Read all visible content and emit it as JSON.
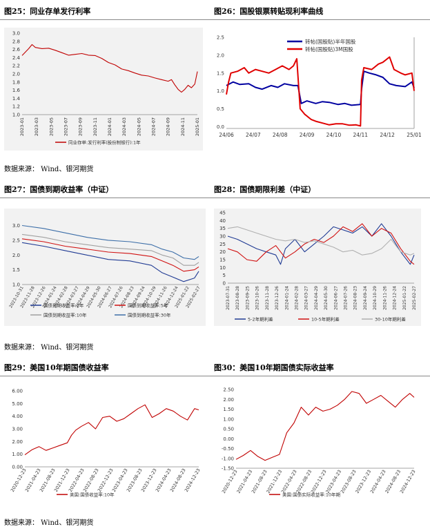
{
  "source_text": "数据来源： Wind、银河期货",
  "charts": [
    {
      "fig_title": "图25：同业存单发行利率",
      "chart_data": {
        "type": "line",
        "x_ticks": [
          "2023-01",
          "2023-03",
          "2023-05",
          "2023-07",
          "2023-09",
          "2023-11",
          "2024-01",
          "2024-03",
          "2024-05",
          "2024-07",
          "2024-09",
          "2024-11",
          "2025-01"
        ],
        "y_ticks": [
          "1.0",
          "1.2",
          "1.4",
          "1.6",
          "1.8",
          "2.0",
          "2.2",
          "2.4",
          "2.6",
          "2.8",
          "3.0"
        ],
        "ylim": [
          1.0,
          3.0
        ],
        "grid": false,
        "legend_position": "bottom",
        "series": [
          {
            "name": "同业存单:发行利率(股份制银行):1年",
            "color": "#c00000",
            "x": [
              0,
              1,
              1.5,
              2,
              3,
              4,
              5,
              6,
              7,
              8,
              9,
              10,
              11,
              12,
              13,
              14,
              15,
              16,
              17,
              18,
              19,
              20,
              21,
              22,
              22.5,
              23,
              23.5,
              24,
              24.5,
              25,
              25.5,
              26,
              26.4
            ],
            "y": [
              2.45,
              2.62,
              2.72,
              2.65,
              2.62,
              2.63,
              2.58,
              2.52,
              2.46,
              2.48,
              2.5,
              2.46,
              2.45,
              2.38,
              2.28,
              2.22,
              2.12,
              2.08,
              2.02,
              1.97,
              1.95,
              1.9,
              1.86,
              1.82,
              1.86,
              1.73,
              1.62,
              1.55,
              1.62,
              1.72,
              1.66,
              1.75,
              2.06
            ]
          }
        ]
      }
    },
    {
      "fig_title": "图26：国股银票转贴现利率曲线",
      "chart_data": {
        "type": "line",
        "x_ticks": [
          "24/06",
          "24/07",
          "24/08",
          "24/09",
          "24/10",
          "24/11",
          "24/12",
          "25/01"
        ],
        "y_ticks": [
          "0.0",
          "0.5",
          "1.0",
          "1.5",
          "2.0",
          "2.5"
        ],
        "ylim": [
          -0.05,
          2.5
        ],
        "grid": false,
        "legend_position": "top-center",
        "series": [
          {
            "name": "转帖(国股贴)半年国股",
            "color": "#0000a0",
            "x": [
              0,
              0.3,
              0.6,
              1,
              1.3,
              1.6,
              2,
              2.3,
              2.6,
              3,
              3.2,
              3.35,
              3.6,
              4,
              4.3,
              4.6,
              5,
              5.3,
              5.6,
              6,
              6.05,
              6.15,
              6.4,
              6.7,
              7,
              7.3,
              7.6,
              8,
              8.3,
              8.4
            ],
            "y": [
              1.15,
              1.25,
              1.18,
              1.2,
              1.1,
              1.05,
              1.15,
              1.1,
              1.2,
              1.15,
              1.15,
              0.65,
              0.72,
              0.65,
              0.7,
              0.68,
              0.62,
              0.65,
              0.6,
              0.62,
              1.05,
              1.55,
              1.5,
              1.45,
              1.38,
              1.2,
              1.15,
              1.12,
              1.25,
              1.08
            ]
          },
          {
            "name": "转帖(国股贴)3M国股",
            "color": "#e00000",
            "x": [
              0,
              0.1,
              0.2,
              0.5,
              0.8,
              1,
              1.3,
              1.6,
              1.9,
              2.2,
              2.5,
              2.8,
              3,
              3.15,
              3.3,
              3.5,
              3.8,
              4,
              4.3,
              4.6,
              4.9,
              5.2,
              5.5,
              5.8,
              6,
              6.05,
              6.15,
              6.5,
              6.8,
              7,
              7.3,
              7.5,
              7.8,
              8,
              8.3,
              8.4
            ],
            "y": [
              0.9,
              1.25,
              1.5,
              1.55,
              1.65,
              1.5,
              1.6,
              1.55,
              1.5,
              1.6,
              1.7,
              1.6,
              1.7,
              1.9,
              0.5,
              0.35,
              0.2,
              0.15,
              0.1,
              0.05,
              0.08,
              0.08,
              0.04,
              0.05,
              0.02,
              1.3,
              1.65,
              1.6,
              1.75,
              1.8,
              1.95,
              1.6,
              1.5,
              1.45,
              1.5,
              1.0
            ]
          }
        ]
      }
    },
    {
      "fig_title": "图27：国债到期收益率（中证）",
      "chart_data": {
        "type": "line",
        "x_ticks": [
          "2023-10-31",
          "2023-11-28",
          "2023-12-26",
          "2024-01-24",
          "2024-02-28",
          "2024-03-27",
          "2024-04-29",
          "2024-05-30",
          "2024-06-27",
          "2024-07-26",
          "2024-08-23",
          "2024-09-24",
          "2024-10-29",
          "2024-11-26",
          "2024-12-24",
          "2025-01-22",
          "2025-02-27"
        ],
        "y_ticks": [
          "1.0",
          "1.5",
          "2.0",
          "2.5",
          "3.0"
        ],
        "ylim": [
          1.0,
          3.2
        ],
        "grid": false,
        "legend_position": "bottom",
        "series": [
          {
            "name": "国债到期收益率:2年",
            "color": "#1f3a93",
            "x": [
              0,
              2,
              4,
              6,
              8,
              10,
              12,
              13,
              14,
              15,
              16,
              16.4
            ],
            "y": [
              2.42,
              2.3,
              2.15,
              2.0,
              1.85,
              1.8,
              1.65,
              1.4,
              1.25,
              1.1,
              1.22,
              1.45
            ]
          },
          {
            "name": "国债到期收益率:5年",
            "color": "#d01010",
            "x": [
              0,
              2,
              4,
              6,
              8,
              10,
              12,
              13,
              14,
              15,
              16,
              16.4
            ],
            "y": [
              2.55,
              2.45,
              2.3,
              2.2,
              2.1,
              2.05,
              1.95,
              1.8,
              1.65,
              1.45,
              1.5,
              1.6
            ]
          },
          {
            "name": "国债到期收益率:10年",
            "color": "#a0a0a0",
            "x": [
              0,
              2,
              4,
              6,
              8,
              10,
              12,
              13,
              14,
              15,
              16,
              16.4
            ],
            "y": [
              2.7,
              2.6,
              2.45,
              2.35,
              2.25,
              2.2,
              2.15,
              2.0,
              1.9,
              1.65,
              1.65,
              1.75
            ]
          },
          {
            "name": "国债到期收益率:30年",
            "color": "#3c6ea8",
            "x": [
              0,
              2,
              4,
              6,
              8,
              10,
              12,
              13,
              14,
              15,
              16,
              16.4
            ],
            "y": [
              3.0,
              2.9,
              2.75,
              2.6,
              2.5,
              2.45,
              2.35,
              2.2,
              2.1,
              1.9,
              1.85,
              1.95
            ]
          }
        ]
      }
    },
    {
      "fig_title": "图28：国债期限利差（中证）",
      "chart_data": {
        "type": "line",
        "x_ticks": [
          "2023-07-31",
          "2023-08-28",
          "2023-09-25",
          "2023-10-26",
          "2023-11-28",
          "2023-12-26",
          "2024-01-24",
          "2024-02-28",
          "2024-03-27",
          "2024-04-29",
          "2024-05-30",
          "2024-06-27",
          "2024-07-26",
          "2024-08-23",
          "2024-09-24",
          "2024-10-29",
          "2024-11-26",
          "2024-12-24",
          "2025-01-22",
          "2025-02-27"
        ],
        "y_ticks": [
          "0",
          "5",
          "10",
          "15",
          "20",
          "25",
          "30",
          "35",
          "40",
          "45"
        ],
        "ylim": [
          0,
          45
        ],
        "grid": false,
        "legend_position": "bottom",
        "series": [
          {
            "name": "5-2年期利差",
            "color": "#1f3a93",
            "x": [
              0,
              1,
              2,
              3,
              4,
              5,
              5.5,
              6,
              7,
              8,
              9,
              10,
              11,
              12,
              13,
              14,
              15,
              16,
              17,
              18,
              19,
              19.4
            ],
            "y": [
              30,
              28,
              25,
              22,
              20,
              18,
              12,
              22,
              28,
              20,
              25,
              30,
              36,
              34,
              32,
              36,
              30,
              38,
              30,
              20,
              12,
              18
            ]
          },
          {
            "name": "10-5年期利差",
            "color": "#d01010",
            "x": [
              0,
              1,
              2,
              3,
              4,
              5,
              6,
              7,
              8,
              9,
              10,
              11,
              12,
              13,
              14,
              15,
              16,
              17,
              18,
              19,
              19.4
            ],
            "y": [
              22,
              20,
              15,
              14,
              20,
              24,
              16,
              20,
              25,
              28,
              26,
              30,
              36,
              33,
              38,
              30,
              35,
              32,
              22,
              14,
              12
            ]
          },
          {
            "name": "30-10年期利差",
            "color": "#b0b0b0",
            "x": [
              0,
              1,
              2,
              3,
              4,
              5,
              6,
              7,
              8,
              9,
              10,
              11,
              12,
              13,
              14,
              15,
              16,
              17,
              18,
              19,
              19.4
            ],
            "y": [
              35,
              36,
              34,
              32,
              30,
              28,
              27,
              28,
              26,
              27,
              25,
              23,
              20,
              21,
              18,
              19,
              22,
              28,
              20,
              18,
              19
            ]
          }
        ]
      }
    },
    {
      "fig_title": "图29：美国10年期国债收益率",
      "chart_data": {
        "type": "line",
        "x_ticks": [
          "2020-12-23",
          "2021-04-23",
          "2021-08-23",
          "2021-12-23",
          "2022-04-23",
          "2022-08-23",
          "2022-12-23",
          "2023-04-23",
          "2023-08-23",
          "2023-12-23",
          "2024-04-23",
          "2024-08-23",
          "2024-12-23"
        ],
        "y_ticks": [
          "0.00",
          "1.00",
          "2.00",
          "3.00",
          "4.00",
          "5.00",
          "6.00"
        ],
        "ylim": [
          0,
          6
        ],
        "grid": false,
        "legend_position": "bottom",
        "series": [
          {
            "name": "美国:国债收益率:10年",
            "color": "#c00000",
            "x": [
              0,
              0.5,
              1,
              1.5,
              2,
              2.5,
              3,
              3.3,
              3.6,
              4,
              4.5,
              5,
              5.5,
              6,
              6.5,
              7,
              7.5,
              8,
              8.5,
              9,
              9.5,
              10,
              10.5,
              11,
              11.5,
              12,
              12.3
            ],
            "y": [
              0.95,
              1.35,
              1.6,
              1.3,
              1.5,
              1.7,
              1.9,
              2.5,
              2.9,
              3.2,
              3.5,
              3.0,
              3.9,
              4.0,
              3.6,
              3.8,
              4.2,
              4.6,
              4.9,
              3.9,
              4.2,
              4.6,
              4.4,
              4.0,
              3.7,
              4.6,
              4.5
            ]
          }
        ]
      }
    },
    {
      "fig_title": "图30：美国10年期国债实际收益率",
      "chart_data": {
        "type": "line",
        "x_ticks": [
          "2020-12-23",
          "2021-04-23",
          "2021-08-23",
          "2021-12-23",
          "2022-04-23",
          "2022-08-23",
          "2022-12-23",
          "2023-04-23",
          "2023-08-23",
          "2023-12-23",
          "2024-04-23",
          "2024-08-23",
          "2024-12-23"
        ],
        "y_ticks": [
          "-1.50",
          "-1.00",
          "-0.50",
          "0.00",
          "0.50",
          "1.00",
          "1.50",
          "2.00",
          "2.50"
        ],
        "ylim": [
          -1.5,
          2.5
        ],
        "grid": false,
        "legend_position": "bottom",
        "series": [
          {
            "name": "美国:国债实际收益率:10年期",
            "color": "#c00000",
            "x": [
              0,
              0.5,
              1,
              1.5,
              2,
              2.5,
              3,
              3.5,
              4,
              4.5,
              5,
              5.5,
              6,
              6.5,
              7,
              7.5,
              8,
              8.5,
              9,
              9.5,
              10,
              10.5,
              11,
              11.5,
              12,
              12.3
            ],
            "y": [
              -1.05,
              -0.85,
              -0.6,
              -0.9,
              -1.1,
              -0.95,
              -0.8,
              0.3,
              0.8,
              1.6,
              1.2,
              1.6,
              1.4,
              1.5,
              1.7,
              2.0,
              2.4,
              2.3,
              1.8,
              2.0,
              2.2,
              1.9,
              1.6,
              2.0,
              2.3,
              2.1
            ]
          }
        ]
      }
    }
  ]
}
